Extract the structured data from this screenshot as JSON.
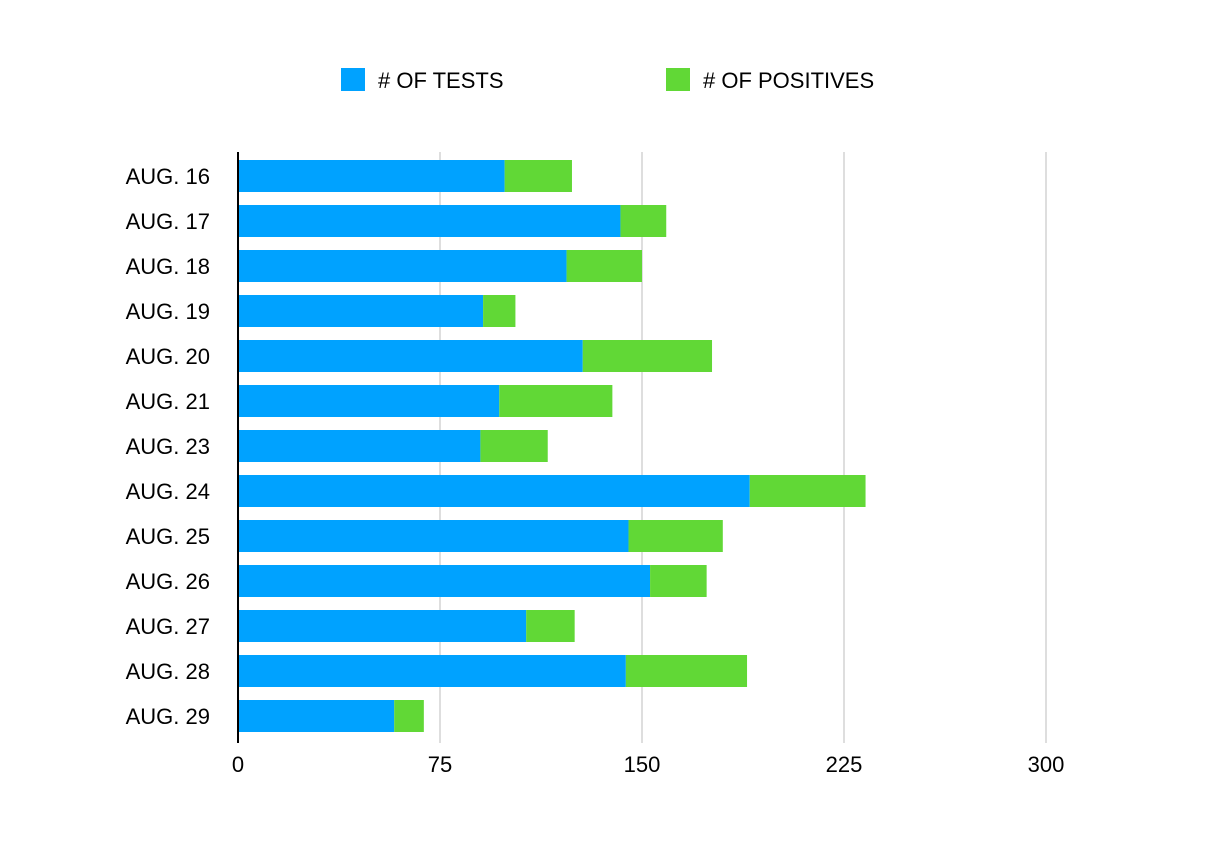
{
  "chart_data": {
    "type": "bar",
    "orientation": "horizontal",
    "stacked": true,
    "categories": [
      "AUG. 16",
      "AUG. 17",
      "AUG. 18",
      "AUG. 19",
      "AUG. 20",
      "AUG. 21",
      "AUG. 23",
      "AUG. 24",
      "AUG. 25",
      "AUG. 26",
      "AUG. 27",
      "AUG. 28",
      "AUG. 29"
    ],
    "series": [
      {
        "name": "# OF TESTS",
        "color": "#00a2ff",
        "values": [
          99,
          142,
          122,
          91,
          128,
          97,
          90,
          190,
          145,
          153,
          107,
          144,
          58
        ]
      },
      {
        "name": "# OF POSITIVES",
        "color": "#61d836",
        "values": [
          25,
          17,
          28,
          12,
          48,
          42,
          25,
          43,
          35,
          21,
          18,
          45,
          11
        ]
      }
    ],
    "x_ticks": [
      "0",
      "75",
      "150",
      "225",
      "300"
    ],
    "xlim": [
      0,
      300
    ],
    "xlabel": "",
    "ylabel": "",
    "grid": "vertical",
    "legend_position": "top"
  }
}
